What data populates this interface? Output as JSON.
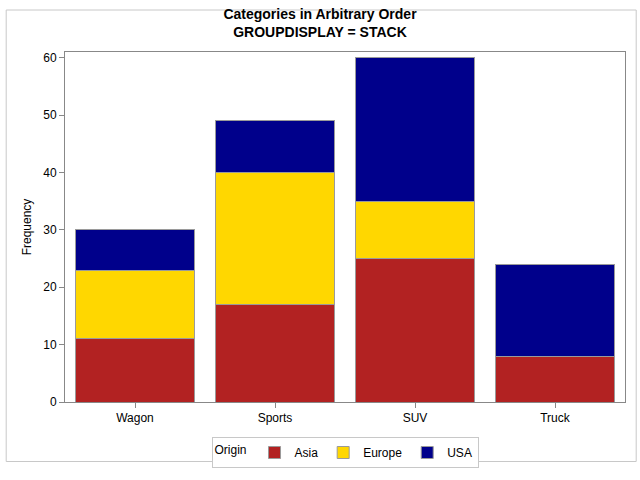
{
  "chart_data": {
    "type": "bar",
    "title": "Categories in Arbitrary Order",
    "subtitle": "GROUPDISPLAY = STACK",
    "y_label": "Frequency",
    "legend_title": "Origin",
    "categories": [
      "Wagon",
      "Sports",
      "SUV",
      "Truck"
    ],
    "series": [
      {
        "name": "Asia",
        "color": "#B22222",
        "values": [
          11,
          17,
          25,
          8
        ]
      },
      {
        "name": "Europe",
        "color": "#FFD700",
        "values": [
          12,
          23,
          10,
          0
        ]
      },
      {
        "name": "USA",
        "color": "#00008B",
        "values": [
          7,
          9,
          25,
          16
        ]
      }
    ],
    "ylim": [
      0,
      61
    ],
    "yticks": [
      0,
      10,
      20,
      30,
      40,
      50,
      60
    ],
    "stacked": true,
    "grid": false,
    "legend": "bottom"
  }
}
